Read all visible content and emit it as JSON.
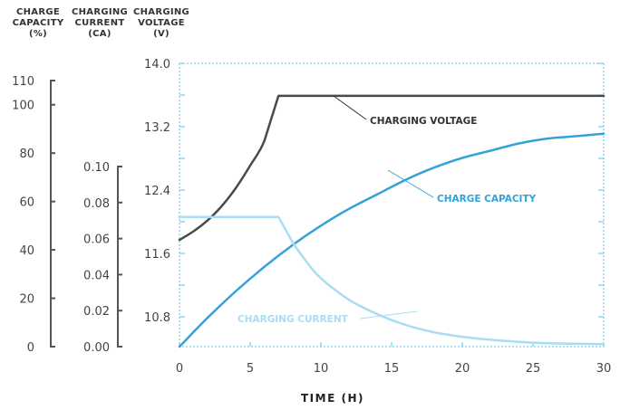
{
  "chart_data": {
    "type": "line",
    "colors": {
      "voltage": "#4a4a4a",
      "capacity": "#34a2d6",
      "current": "#a9ddf3",
      "grid": "#5ec2e8",
      "axis": "#555555",
      "text": "#444444"
    },
    "xlabel": "TIME (H)",
    "x_ticks": [
      "0",
      "5",
      "10",
      "15",
      "20",
      "25",
      "30"
    ],
    "xlim": [
      0,
      30
    ],
    "axes": {
      "capacity": {
        "title": [
          "CHARGE",
          "CAPACITY",
          "(%)"
        ],
        "ticks": [
          "0",
          "20",
          "40",
          "60",
          "80",
          "100",
          "110"
        ],
        "ylim": [
          0,
          110
        ]
      },
      "current": {
        "title": [
          "CHARGING",
          "CURRENT",
          "(CA)"
        ],
        "ticks": [
          "0.00",
          "0.02",
          "0.04",
          "0.06",
          "0.08",
          "0.10"
        ],
        "ylim": [
          0,
          0.1
        ]
      },
      "voltage": {
        "title": [
          "CHARGING",
          "VOLTAGE",
          "(V)"
        ],
        "ticks": [
          "10.8",
          "11.6",
          "12.4",
          "13.2",
          "14.0"
        ],
        "ylim": [
          10.8,
          14.0
        ]
      }
    },
    "series": [
      {
        "name": "CHARGING VOLTAGE",
        "axis": "voltage",
        "x": [
          0,
          1,
          2,
          3,
          4,
          5,
          6,
          7,
          10,
          15,
          20,
          25,
          30
        ],
        "y": [
          11.77,
          11.88,
          12.02,
          12.2,
          12.43,
          12.71,
          13.02,
          13.59,
          13.59,
          13.59,
          13.59,
          13.59,
          13.59
        ]
      },
      {
        "name": "CHARGE CAPACITY",
        "axis": "capacity",
        "x": [
          0,
          2,
          4,
          6,
          8,
          10,
          12,
          14,
          16,
          18,
          20,
          22,
          24,
          26,
          28,
          30
        ],
        "y": [
          0,
          12,
          23,
          33,
          42,
          50,
          57,
          63,
          69,
          74,
          78,
          81,
          84,
          86,
          87,
          88
        ]
      },
      {
        "name": "CHARGING CURRENT",
        "axis": "current",
        "x": [
          0,
          7,
          8,
          9,
          10,
          12,
          14,
          16,
          18,
          20,
          22,
          25,
          28,
          30
        ],
        "y": [
          0.072,
          0.072,
          0.058,
          0.047,
          0.038,
          0.026,
          0.018,
          0.012,
          0.008,
          0.0055,
          0.0038,
          0.0022,
          0.0016,
          0.0014
        ]
      }
    ]
  }
}
